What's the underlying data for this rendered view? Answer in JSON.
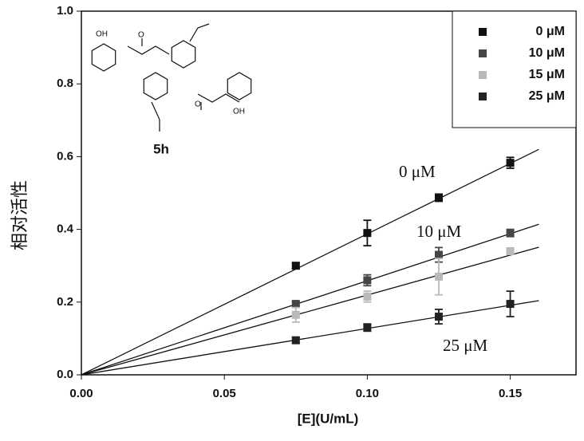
{
  "chart_data": {
    "type": "scatter",
    "xlabel": "[E](U/mL)",
    "ylabel": "相对活性",
    "x": [
      0.075,
      0.1,
      0.125,
      0.15
    ],
    "series": [
      {
        "name": "0 μM",
        "color": "#111111",
        "values": [
          0.3,
          0.39,
          0.487,
          0.583
        ],
        "errors": [
          0.008,
          0.035,
          0.01,
          0.015
        ],
        "fit": {
          "x": [
            0,
            0.16
          ],
          "y": [
            0,
            0.62
          ]
        }
      },
      {
        "name": "10 μM",
        "color": "#464646",
        "values": [
          0.195,
          0.26,
          0.33,
          0.39
        ],
        "errors": [
          0.006,
          0.015,
          0.02,
          0.01
        ],
        "fit": {
          "x": [
            0,
            0.16
          ],
          "y": [
            0,
            0.414
          ]
        }
      },
      {
        "name": "15 μM",
        "color": "#b9b9b9",
        "values": [
          0.165,
          0.215,
          0.27,
          0.34
        ],
        "errors": [
          0.02,
          0.015,
          0.05,
          0.008
        ],
        "fit": {
          "x": [
            0,
            0.16
          ],
          "y": [
            0,
            0.351
          ]
        }
      },
      {
        "name": "25 μM",
        "color": "#222222",
        "values": [
          0.095,
          0.13,
          0.16,
          0.195
        ],
        "errors": [
          0.008,
          0.01,
          0.02,
          0.035
        ],
        "fit": {
          "x": [
            0,
            0.16
          ],
          "y": [
            0,
            0.204
          ]
        }
      }
    ],
    "annotations": [
      "0 μM",
      "10 μM",
      "25 μM"
    ],
    "structure": {
      "label": "5h",
      "atoms": [
        "OH",
        "O",
        "O",
        "OH"
      ]
    },
    "xlim": [
      0,
      0.173
    ],
    "ylim": [
      0,
      1.0
    ],
    "xticks": [
      {
        "value": 0,
        "label": "0.00"
      },
      {
        "value": 0.05,
        "label": "0.05"
      },
      {
        "value": 0.1,
        "label": "0.10"
      },
      {
        "value": 0.15,
        "label": "0.15"
      }
    ],
    "yticks": [
      {
        "value": 0,
        "label": "0.0"
      },
      {
        "value": 0.2,
        "label": "0.2"
      },
      {
        "value": 0.4,
        "label": "0.4"
      },
      {
        "value": 0.6,
        "label": "0.6"
      },
      {
        "value": 0.8,
        "label": "0.8"
      },
      {
        "value": 1.0,
        "label": "1.0"
      }
    ],
    "legend": "upper right"
  }
}
